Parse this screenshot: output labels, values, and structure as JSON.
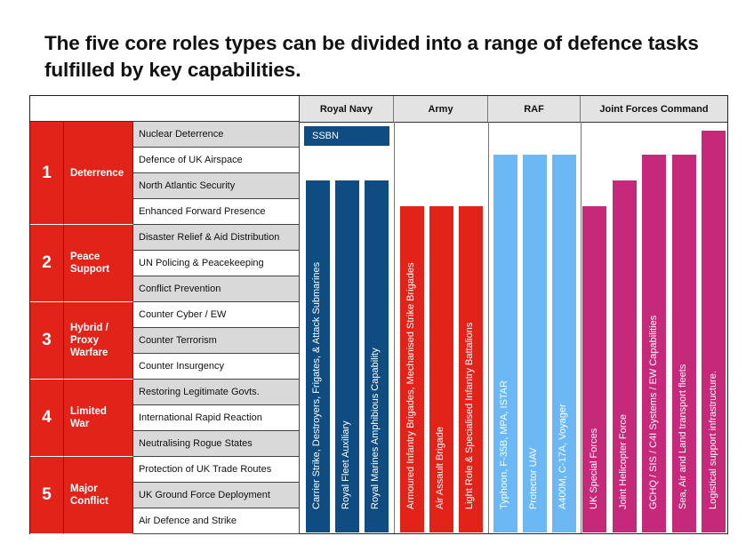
{
  "title": "The five core roles types can be divided into a range of defence tasks fulfilled by key capabilities.",
  "services": [
    "Royal Navy",
    "Army",
    "RAF",
    "Joint Forces Command"
  ],
  "roles": [
    {
      "number": "1",
      "name": "Deterrence"
    },
    {
      "number": "2",
      "name": "Peace Support"
    },
    {
      "number": "3",
      "name": "Hybrid / Proxy Warfare"
    },
    {
      "number": "4",
      "name": "Limited War"
    },
    {
      "number": "5",
      "name": "Major Conflict"
    }
  ],
  "tasks": [
    "Nuclear Deterrence",
    "Defence of UK Airspace",
    "North Atlantic Security",
    "Enhanced Forward Presence",
    "Disaster Relief & Aid Distribution",
    "UN Policing & Peacekeeping",
    "Conflict Prevention",
    "Counter Cyber / EW",
    "Counter Terrorism",
    "Counter Insurgency",
    "Restoring Legitimate Govts.",
    "International Rapid Reaction",
    "Neutralising Rogue States",
    "Protection of UK Trade Routes",
    "UK Ground Force Deployment",
    "Air Defence and Strike"
  ],
  "ssbn": {
    "label": "SSBN",
    "color": "#0f4c81",
    "from_task": 0,
    "to_task": 0
  },
  "capabilities": [
    {
      "label": "Carrier Strike, Destroyers, Frigates, & Attack Submarines",
      "service": "Royal Navy",
      "from_task": 2,
      "color": "#0f4c81"
    },
    {
      "label": "Royal Fleet Auxiliary",
      "service": "Royal Navy",
      "from_task": 2,
      "color": "#0f4c81"
    },
    {
      "label": "Royal Marines Amphibious Capability",
      "service": "Royal Navy",
      "from_task": 2,
      "color": "#0f4c81"
    },
    {
      "label": "Armoured Infantry Brigades, Mechanised Strike Brigades",
      "service": "Army",
      "from_task": 3,
      "color": "#e2231a"
    },
    {
      "label": "Air Assault Brigade",
      "service": "Army",
      "from_task": 3,
      "color": "#e2231a"
    },
    {
      "label": "Light Role & Specialised Infantry Battalions",
      "service": "Army",
      "from_task": 3,
      "color": "#e2231a"
    },
    {
      "label": "Typhoon, F-35B, MPA, ISTAR",
      "service": "RAF",
      "from_task": 1,
      "color": "#6bb8f5"
    },
    {
      "label": "Protector UAV",
      "service": "RAF",
      "from_task": 1,
      "color": "#6bb8f5"
    },
    {
      "label": "A400M, C-17A, Voyager",
      "service": "RAF",
      "from_task": 1,
      "color": "#6bb8f5"
    },
    {
      "label": "UK Special Forces",
      "service": "Joint Forces Command",
      "from_task": 3,
      "color": "#c6287a"
    },
    {
      "label": "Joint Helicopter Force",
      "service": "Joint Forces Command",
      "from_task": 2,
      "color": "#c6287a"
    },
    {
      "label": "GCHQ / SIS / C4I Systems / EW Capabilities",
      "service": "Joint Forces Command",
      "from_task": 1,
      "color": "#c6287a"
    },
    {
      "label": "Sea, Air and Land transport fleets",
      "service": "Joint Forces Command",
      "from_task": 1,
      "color": "#c6287a"
    },
    {
      "label": "Logistical support infrastructure.",
      "service": "Joint Forces Command",
      "from_task": 0,
      "color": "#c6287a"
    }
  ]
}
